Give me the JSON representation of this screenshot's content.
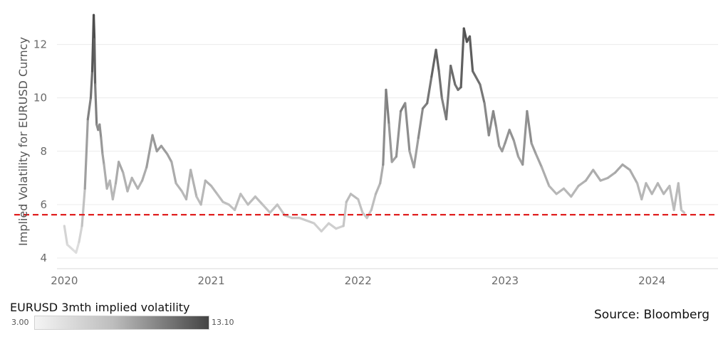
{
  "chart_data": {
    "type": "line",
    "title": "",
    "xlabel": "",
    "ylabel": "Implied Volatility for EURUSD Curncy",
    "x_ticks": [
      "2020",
      "2021",
      "2022",
      "2023",
      "2024"
    ],
    "y_ticks": [
      4,
      6,
      8,
      10,
      12
    ],
    "xlim": [
      2019.95,
      2024.45
    ],
    "ylim": [
      3.6,
      13.4
    ],
    "grid": "horizontal",
    "reference_line": {
      "y": 5.62,
      "color": "#e02020",
      "style": "dashed"
    },
    "color_scale": {
      "min": 3.0,
      "max": 13.1,
      "min_color": "#f4f4f4",
      "max_color": "#444444"
    },
    "series": [
      {
        "x": [
          2020.0,
          2020.02,
          2020.04,
          2020.06,
          2020.08,
          2020.1,
          2020.12,
          2020.14,
          2020.16,
          2020.18,
          2020.19,
          2020.2,
          2020.205,
          2020.21,
          2020.22,
          2020.23,
          2020.24,
          2020.25,
          2020.26,
          2020.27,
          2020.29,
          2020.31,
          2020.33,
          2020.35,
          2020.37,
          2020.4,
          2020.43,
          2020.46,
          2020.5,
          2020.53,
          2020.56,
          2020.6,
          2020.63,
          2020.66,
          2020.7,
          2020.73,
          2020.76,
          2020.8,
          2020.83,
          2020.86,
          2020.9,
          2020.93,
          2020.96,
          2021.0,
          2021.04,
          2021.08,
          2021.12,
          2021.16,
          2021.2,
          2021.25,
          2021.3,
          2021.35,
          2021.4,
          2021.45,
          2021.5,
          2021.55,
          2021.6,
          2021.65,
          2021.7,
          2021.75,
          2021.8,
          2021.85,
          2021.9,
          2021.92,
          2021.95,
          2022.0,
          2022.03,
          2022.06,
          2022.09,
          2022.12,
          2022.15,
          2022.17,
          2022.19,
          2022.21,
          2022.23,
          2022.26,
          2022.29,
          2022.32,
          2022.35,
          2022.38,
          2022.41,
          2022.44,
          2022.47,
          2022.5,
          2022.53,
          2022.55,
          2022.57,
          2022.6,
          2022.63,
          2022.66,
          2022.68,
          2022.7,
          2022.72,
          2022.74,
          2022.76,
          2022.78,
          2022.8,
          2022.83,
          2022.86,
          2022.89,
          2022.92,
          2022.94,
          2022.96,
          2022.98,
          2023.0,
          2023.03,
          2023.06,
          2023.09,
          2023.12,
          2023.15,
          2023.18,
          2023.21,
          2023.25,
          2023.3,
          2023.35,
          2023.4,
          2023.45,
          2023.5,
          2023.55,
          2023.6,
          2023.65,
          2023.7,
          2023.75,
          2023.8,
          2023.85,
          2023.9,
          2023.93,
          2023.96,
          2024.0,
          2024.04,
          2024.08,
          2024.12,
          2024.15,
          2024.18,
          2024.2,
          2024.22
        ],
        "values": [
          5.2,
          4.5,
          4.4,
          4.3,
          4.2,
          4.6,
          5.2,
          6.6,
          9.2,
          10.0,
          11.0,
          13.1,
          12.2,
          10.5,
          9.0,
          8.8,
          9.0,
          8.5,
          7.9,
          7.5,
          6.6,
          6.9,
          6.2,
          6.8,
          7.6,
          7.2,
          6.5,
          7.0,
          6.6,
          6.9,
          7.4,
          8.6,
          8.0,
          8.2,
          7.9,
          7.6,
          6.8,
          6.5,
          6.2,
          7.3,
          6.3,
          6.0,
          6.9,
          6.7,
          6.4,
          6.1,
          6.0,
          5.8,
          6.4,
          6.0,
          6.3,
          6.0,
          5.7,
          6.0,
          5.6,
          5.5,
          5.5,
          5.4,
          5.3,
          5.0,
          5.3,
          5.1,
          5.2,
          6.1,
          6.4,
          6.2,
          5.7,
          5.5,
          5.8,
          6.4,
          6.8,
          7.5,
          10.3,
          9.0,
          7.6,
          7.8,
          9.5,
          9.8,
          8.0,
          7.4,
          8.5,
          9.6,
          9.8,
          10.8,
          11.8,
          11.0,
          10.0,
          9.2,
          11.2,
          10.5,
          10.3,
          10.4,
          12.6,
          12.1,
          12.3,
          11.0,
          10.8,
          10.5,
          9.8,
          8.6,
          9.5,
          8.9,
          8.2,
          8.0,
          8.3,
          8.8,
          8.4,
          7.8,
          7.5,
          9.5,
          8.3,
          7.9,
          7.4,
          6.7,
          6.4,
          6.6,
          6.3,
          6.7,
          6.9,
          7.3,
          6.9,
          7.0,
          7.2,
          7.5,
          7.3,
          6.8,
          6.2,
          6.8,
          6.4,
          6.8,
          6.4,
          6.7,
          5.8,
          6.8,
          5.8,
          5.7
        ]
      }
    ]
  },
  "legend": {
    "title": "EURUSD 3mth implied volatility",
    "min_label": "3.00",
    "max_label": "13.10"
  },
  "source": "Source: Bloomberg"
}
